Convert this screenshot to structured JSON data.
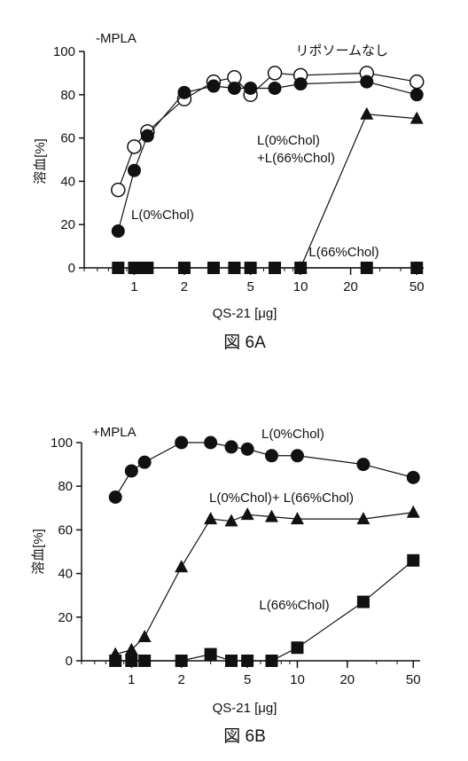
{
  "chart_data": [
    {
      "type": "line",
      "panel_tag": "-MPLA",
      "xlabel": "QS-21 [μg]",
      "ylabel": "溶血[%]",
      "x_scale": "log",
      "xlim": [
        0.5,
        55
      ],
      "ylim": [
        0,
        100
      ],
      "x_ticks": [
        1,
        2,
        5,
        10,
        20,
        50
      ],
      "x_tick_labels": [
        "1",
        "2",
        "5",
        "10",
        "20",
        "50"
      ],
      "y_ticks": [
        0,
        20,
        40,
        60,
        80,
        100
      ],
      "y_tick_labels": [
        "0",
        "20",
        "40",
        "60",
        "80",
        "100"
      ],
      "caption": "図 6A",
      "series": [
        {
          "name": "リポソームなし",
          "marker": "open-circle",
          "x": [
            0.8,
            1.0,
            1.2,
            2.0,
            3.0,
            4.0,
            5.0,
            7.0,
            10.0,
            25.0,
            50.0
          ],
          "y": [
            36,
            56,
            63,
            78,
            86,
            88,
            80,
            90,
            89,
            90,
            86
          ]
        },
        {
          "name": "L(0%Chol)",
          "marker": "filled-circle",
          "x": [
            0.8,
            1.0,
            1.2,
            2.0,
            3.0,
            4.0,
            5.0,
            7.0,
            10.0,
            25.0,
            50.0
          ],
          "y": [
            17,
            45,
            61,
            81,
            84,
            83,
            83,
            83,
            85,
            86,
            80
          ]
        },
        {
          "name": "L(0%Chol)\n+L(66%Chol)",
          "marker": "filled-triangle",
          "x": [
            10.0,
            25.0,
            50.0
          ],
          "y": [
            0,
            71,
            69
          ]
        },
        {
          "name": "L(66%Chol)",
          "marker": "filled-square",
          "x": [
            0.8,
            1.0,
            1.1,
            1.2,
            2.0,
            3.0,
            4.0,
            5.0,
            7.0,
            10.0,
            25.0,
            50.0
          ],
          "y": [
            0,
            0,
            0,
            0,
            0,
            0,
            0,
            0,
            0,
            0,
            0,
            0
          ]
        }
      ]
    },
    {
      "type": "line",
      "panel_tag": "+MPLA",
      "xlabel": "QS-21 [μg]",
      "ylabel": "溶血[%]",
      "x_scale": "log",
      "xlim": [
        0.5,
        55
      ],
      "ylim": [
        0,
        100
      ],
      "x_ticks": [
        1,
        2,
        5,
        10,
        20,
        50
      ],
      "x_tick_labels": [
        "1",
        "2",
        "5",
        "10",
        "20",
        "50"
      ],
      "y_ticks": [
        0,
        20,
        40,
        60,
        80,
        100
      ],
      "y_tick_labels": [
        "0",
        "20",
        "40",
        "60",
        "80",
        "100"
      ],
      "caption": "図 6B",
      "series": [
        {
          "name": "L(0%Chol)",
          "marker": "filled-circle",
          "x": [
            0.8,
            1.0,
            1.2,
            2.0,
            3.0,
            4.0,
            5.0,
            7.0,
            10.0,
            25.0,
            50.0
          ],
          "y": [
            75,
            87,
            91,
            100,
            100,
            98,
            97,
            94,
            94,
            90,
            84
          ]
        },
        {
          "name": "L(0%Chol)+ L(66%Chol)",
          "marker": "filled-triangle",
          "x": [
            0.8,
            1.0,
            1.2,
            2.0,
            3.0,
            4.0,
            5.0,
            7.0,
            10.0,
            25.0,
            50.0
          ],
          "y": [
            3,
            5,
            11,
            43,
            65,
            64,
            67,
            66,
            65,
            65,
            68
          ]
        },
        {
          "name": "L(66%Chol)",
          "marker": "filled-square",
          "x": [
            0.8,
            1.0,
            1.2,
            2.0,
            3.0,
            4.0,
            5.0,
            7.0,
            10.0,
            25.0,
            50.0
          ],
          "y": [
            0,
            0,
            0,
            0,
            3,
            0,
            0,
            0,
            6,
            27,
            46
          ]
        }
      ]
    }
  ]
}
